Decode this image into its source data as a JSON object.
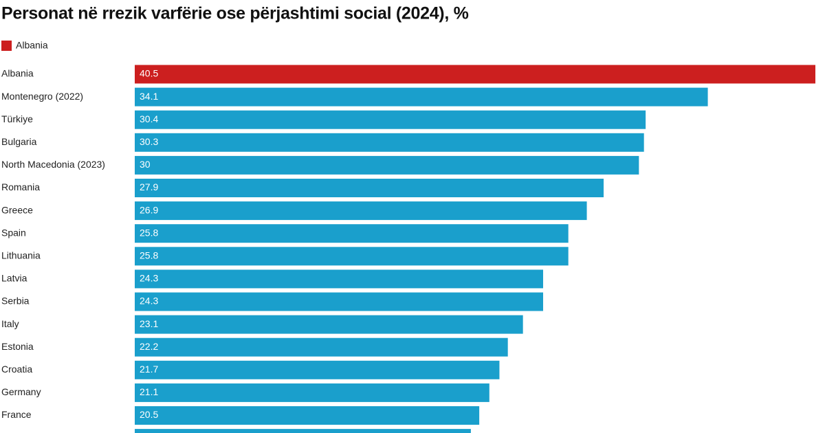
{
  "chart_data": {
    "type": "bar",
    "orientation": "horizontal",
    "title": "Personat në rrezik varfërie ose përjashtimi social (2024), %",
    "legend": [
      {
        "name": "Albania",
        "color": "#cc1f1f"
      }
    ],
    "categories": [
      "Albania",
      "Montenegro (2022)",
      "Türkiye",
      "Bulgaria",
      "North Macedonia (2023)",
      "Romania",
      "Greece",
      "Spain",
      "Lithuania",
      "Latvia",
      "Serbia",
      "Italy",
      "Estonia",
      "Croatia",
      "Germany",
      "France",
      null
    ],
    "values": [
      40.5,
      34.1,
      30.4,
      30.3,
      30,
      27.9,
      26.9,
      25.8,
      25.8,
      24.3,
      24.3,
      23.1,
      22.2,
      21.7,
      21.1,
      20.5,
      20.0
    ],
    "colors": [
      "#cc1f1f",
      "#1a9fcc",
      "#1a9fcc",
      "#1a9fcc",
      "#1a9fcc",
      "#1a9fcc",
      "#1a9fcc",
      "#1a9fcc",
      "#1a9fcc",
      "#1a9fcc",
      "#1a9fcc",
      "#1a9fcc",
      "#1a9fcc",
      "#1a9fcc",
      "#1a9fcc",
      "#1a9fcc",
      "#1a9fcc"
    ]
  }
}
